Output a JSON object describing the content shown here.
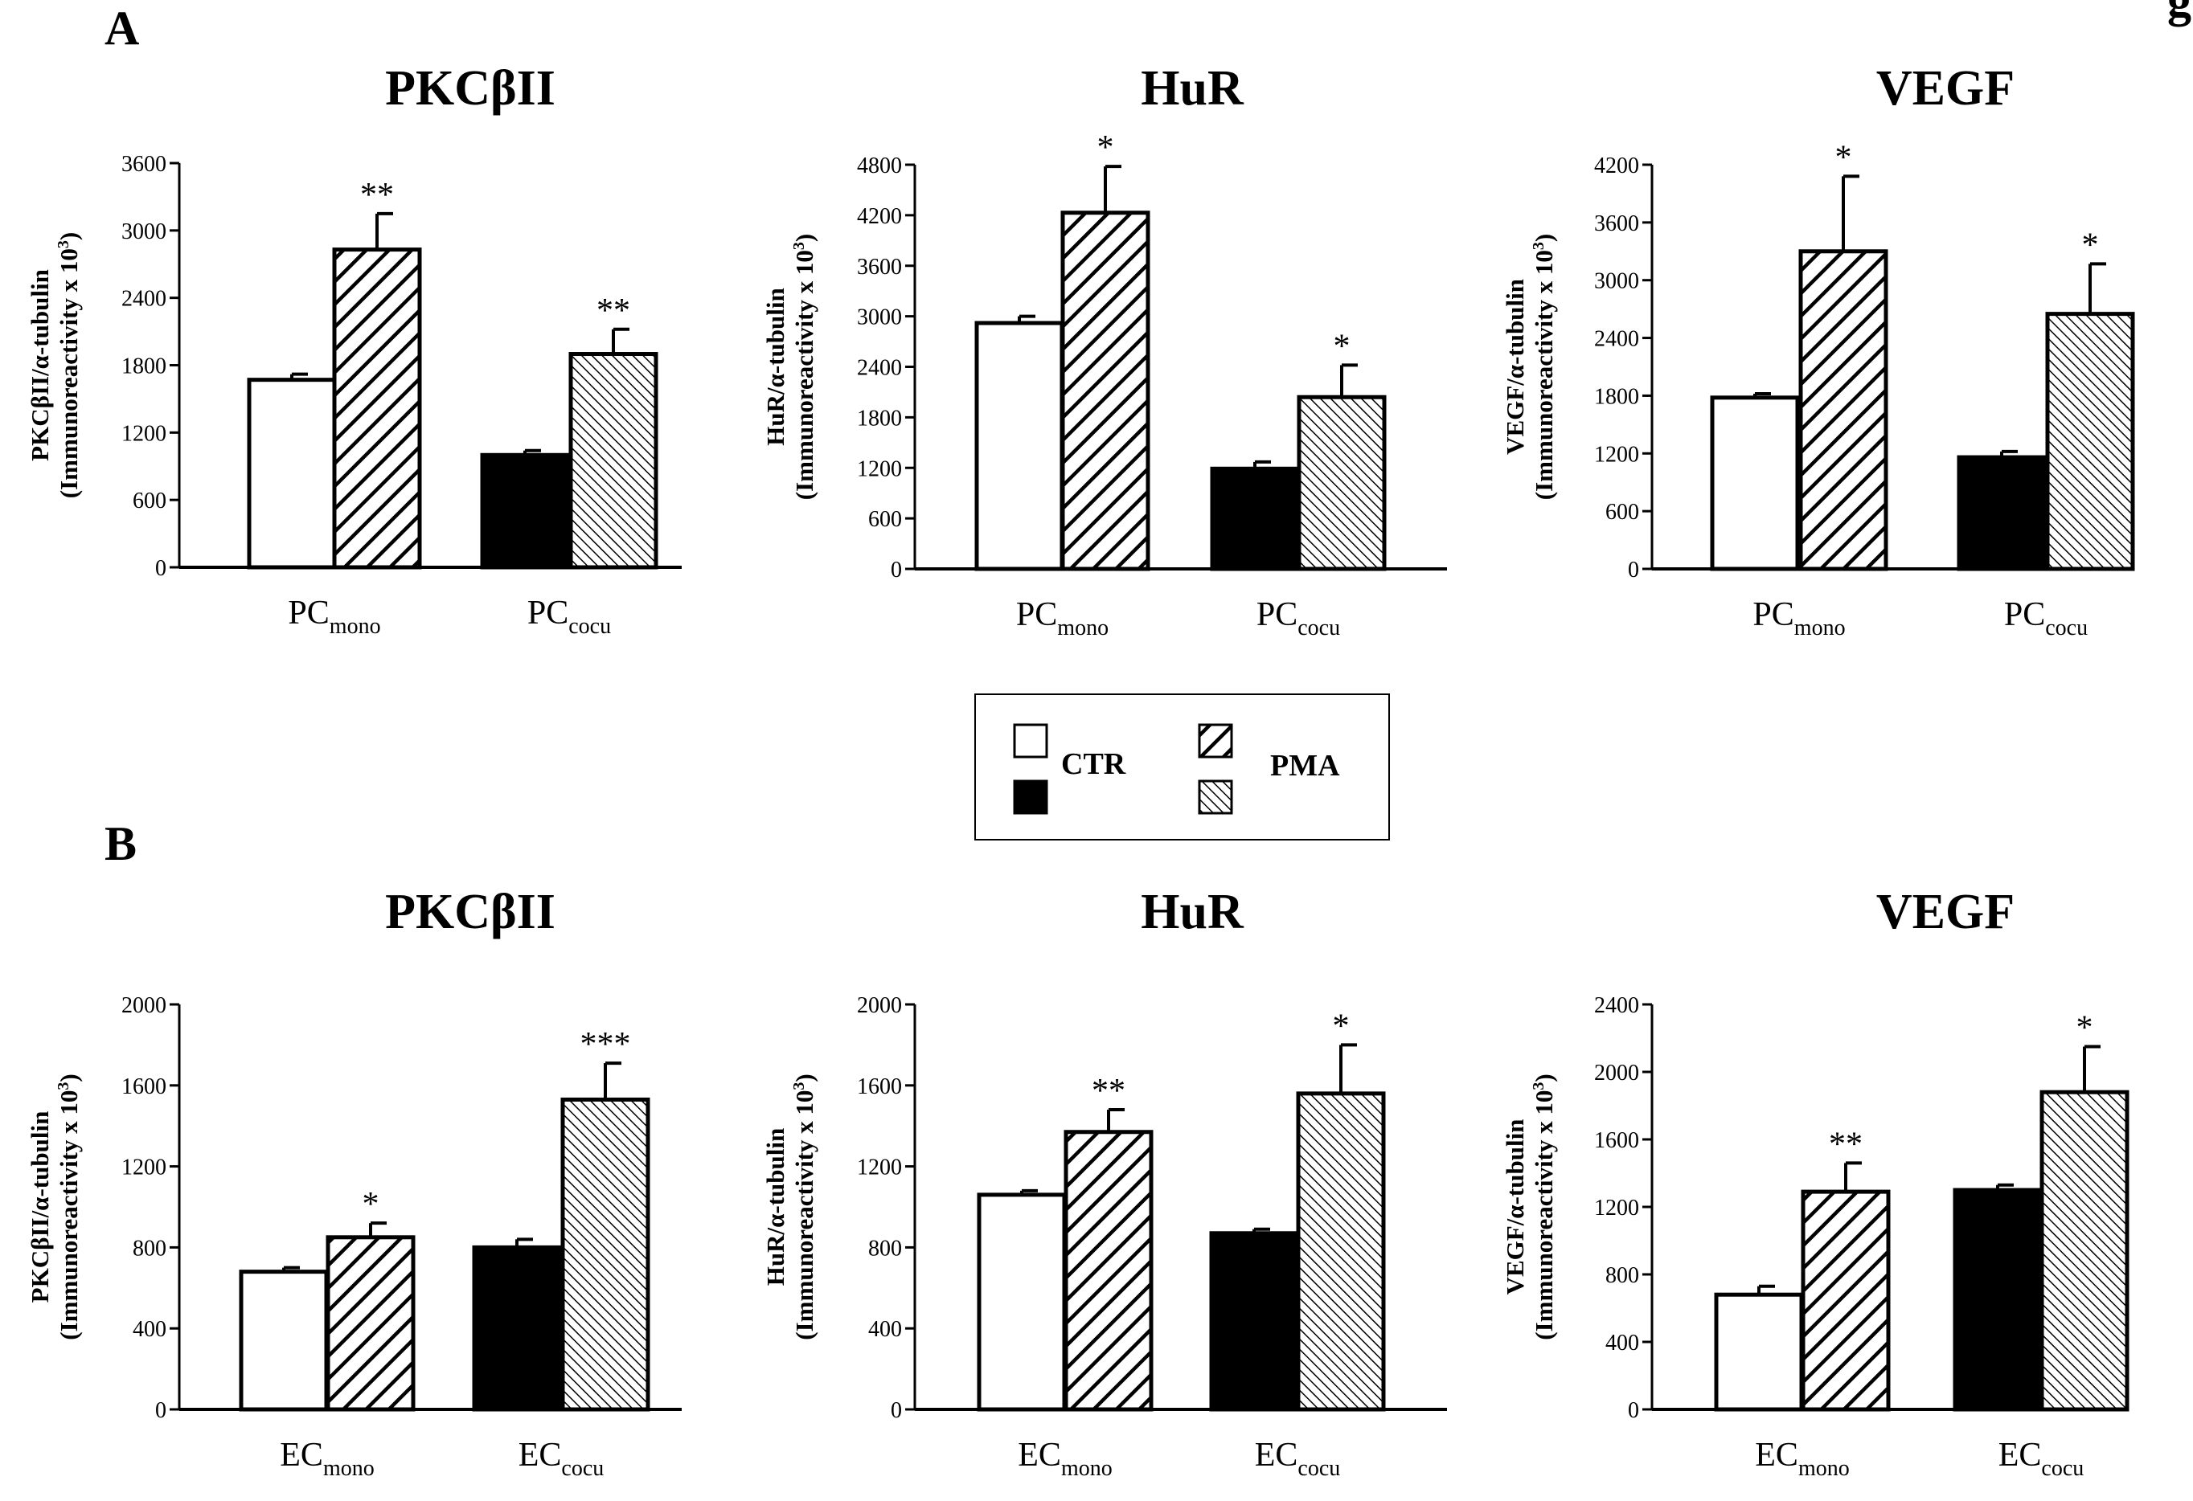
{
  "figure": {
    "panel_letters": [
      "A",
      "B"
    ],
    "top_right_fragment": "g",
    "legend": {
      "labels": [
        "CTR",
        "PMA"
      ],
      "swatches": [
        {
          "fill": "white",
          "group": "mono"
        },
        {
          "fill": "black",
          "group": "cocu"
        },
        {
          "fill": "hatch-wide",
          "group": "mono"
        },
        {
          "fill": "hatch-fine",
          "group": "cocu"
        }
      ]
    }
  },
  "colors": {
    "ink": "#000000",
    "background": "#ffffff"
  },
  "chart_data": [
    {
      "type": "bar",
      "panel": "A",
      "title": "PKCβII",
      "ylabel": [
        "PKCβII/α-tubulin",
        "(Immunoreactivity  x 10",
        "3",
        ")"
      ],
      "yticks": [
        0,
        600,
        1200,
        1800,
        2400,
        3000,
        3600
      ],
      "ylim": [
        0,
        3600
      ],
      "categories": [
        {
          "main": "PC",
          "sub": "mono"
        },
        {
          "main": "PC",
          "sub": "cocu"
        }
      ],
      "series": [
        {
          "name": "CTR",
          "values": [
            1670,
            1000
          ]
        },
        {
          "name": "PMA",
          "values": [
            2830,
            1900
          ]
        }
      ],
      "errors": [
        [
          50,
          40
        ],
        [
          320,
          220
        ]
      ],
      "significance": [
        [
          "",
          ""
        ],
        [
          "**",
          "**"
        ]
      ]
    },
    {
      "type": "bar",
      "panel": "A",
      "title": "HuR",
      "ylabel": [
        "HuR/α-tubulin",
        "(Immunoreactivity x 10",
        "3",
        ")"
      ],
      "yticks": [
        0,
        600,
        1200,
        1800,
        2400,
        3000,
        3600,
        4200,
        4800
      ],
      "ylim": [
        0,
        4800
      ],
      "categories": [
        {
          "main": "PC",
          "sub": "mono"
        },
        {
          "main": "PC",
          "sub": "cocu"
        }
      ],
      "series": [
        {
          "name": "CTR",
          "values": [
            2920,
            1190
          ]
        },
        {
          "name": "PMA",
          "values": [
            4230,
            2040
          ]
        }
      ],
      "errors": [
        [
          80,
          80
        ],
        [
          550,
          380
        ]
      ],
      "significance": [
        [
          "",
          ""
        ],
        [
          "*",
          "*"
        ]
      ]
    },
    {
      "type": "bar",
      "panel": "A",
      "title": "VEGF",
      "ylabel": [
        "VEGF/α-tubulin",
        "(Immunoreactivity x 10",
        "3",
        ")"
      ],
      "yticks": [
        0,
        600,
        1200,
        1800,
        2400,
        3000,
        3600,
        4200
      ],
      "ylim": [
        0,
        4200
      ],
      "categories": [
        {
          "main": "PC",
          "sub": "mono"
        },
        {
          "main": "PC",
          "sub": "cocu"
        }
      ],
      "series": [
        {
          "name": "CTR",
          "values": [
            1780,
            1160
          ]
        },
        {
          "name": "PMA",
          "values": [
            3300,
            2650
          ]
        }
      ],
      "errors": [
        [
          40,
          60
        ],
        [
          780,
          520
        ]
      ],
      "significance": [
        [
          "",
          ""
        ],
        [
          "*",
          "*"
        ]
      ]
    },
    {
      "type": "bar",
      "panel": "B",
      "title": "PKCβII",
      "ylabel": [
        "PKCβII/α-tubulin",
        "(Immunoreactivity x 10",
        "3",
        ")"
      ],
      "yticks": [
        0,
        400,
        800,
        1200,
        1600,
        2000
      ],
      "ylim": [
        0,
        2000
      ],
      "categories": [
        {
          "main": "EC",
          "sub": "mono"
        },
        {
          "main": "EC",
          "sub": "cocu"
        }
      ],
      "series": [
        {
          "name": "CTR",
          "values": [
            680,
            800
          ]
        },
        {
          "name": "PMA",
          "values": [
            850,
            1530
          ]
        }
      ],
      "errors": [
        [
          20,
          40
        ],
        [
          70,
          180
        ]
      ],
      "significance": [
        [
          "",
          ""
        ],
        [
          "*",
          "***"
        ]
      ]
    },
    {
      "type": "bar",
      "panel": "B",
      "title": "HuR",
      "ylabel": [
        "HuR/α-tubulin",
        "(Immunoreactivity x 10",
        "3",
        ")"
      ],
      "yticks": [
        0,
        400,
        800,
        1200,
        1600,
        2000
      ],
      "ylim": [
        0,
        2000
      ],
      "categories": [
        {
          "main": "EC",
          "sub": "mono"
        },
        {
          "main": "EC",
          "sub": "cocu"
        }
      ],
      "series": [
        {
          "name": "CTR",
          "values": [
            1060,
            870
          ]
        },
        {
          "name": "PMA",
          "values": [
            1370,
            1560
          ]
        }
      ],
      "errors": [
        [
          20,
          20
        ],
        [
          110,
          240
        ]
      ],
      "significance": [
        [
          "",
          ""
        ],
        [
          "**",
          "*"
        ]
      ]
    },
    {
      "type": "bar",
      "panel": "B",
      "title": "VEGF",
      "ylabel": [
        "VEGF/α-tubulin",
        "(Immunoreactivity x 10",
        "3",
        ")"
      ],
      "yticks": [
        0,
        400,
        800,
        1200,
        1600,
        2000,
        2400
      ],
      "ylim": [
        0,
        2400
      ],
      "categories": [
        {
          "main": "EC",
          "sub": "mono"
        },
        {
          "main": "EC",
          "sub": "cocu"
        }
      ],
      "series": [
        {
          "name": "CTR",
          "values": [
            680,
            1300
          ]
        },
        {
          "name": "PMA",
          "values": [
            1290,
            1880
          ]
        }
      ],
      "errors": [
        [
          50,
          30
        ],
        [
          170,
          270
        ]
      ],
      "significance": [
        [
          "",
          ""
        ],
        [
          "**",
          "*"
        ]
      ]
    }
  ]
}
